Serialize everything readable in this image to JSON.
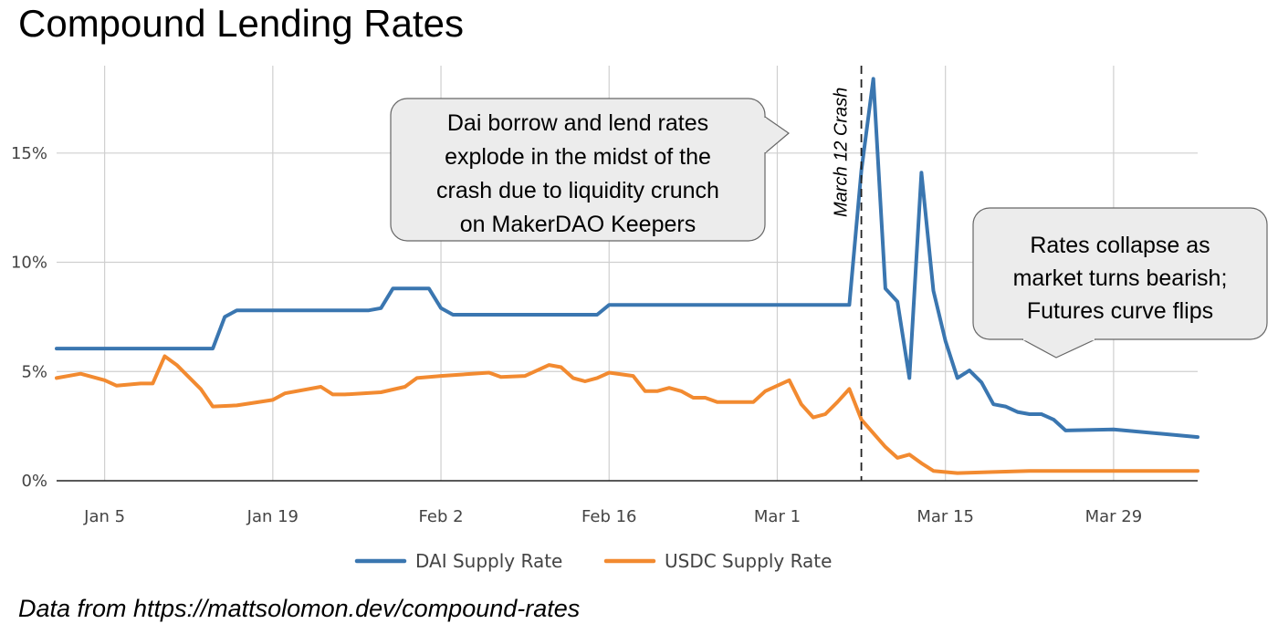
{
  "title": "Compound Lending Rates",
  "caption": "Data from https://mattsolomon.dev/compound-rates",
  "colors": {
    "dai": "#3a76b0",
    "usdc": "#f28a30",
    "grid": "#cfcfcf",
    "axis": "#222222"
  },
  "chart_data": {
    "type": "line",
    "x_type": "date",
    "xlim": [
      "2020-01-01",
      "2020-04-05"
    ],
    "ylim": [
      0,
      19
    ],
    "x_ticks": [
      {
        "date": "2020-01-05",
        "label": "Jan 5"
      },
      {
        "date": "2020-01-19",
        "label": "Jan 19"
      },
      {
        "date": "2020-02-02",
        "label": "Feb 2"
      },
      {
        "date": "2020-02-16",
        "label": "Feb 16"
      },
      {
        "date": "2020-03-01",
        "label": "Mar 1"
      },
      {
        "date": "2020-03-15",
        "label": "Mar 15"
      },
      {
        "date": "2020-03-29",
        "label": "Mar 29"
      }
    ],
    "y_ticks": [
      {
        "value": 0,
        "label": "0%"
      },
      {
        "value": 5,
        "label": "5%"
      },
      {
        "value": 10,
        "label": "10%"
      },
      {
        "value": 15,
        "label": "15%"
      }
    ],
    "grid": true,
    "legend_position": "bottom-center",
    "series": [
      {
        "name": "DAI Supply Rate",
        "color": "#3a76b0",
        "points": [
          [
            "2020-01-01",
            6.05
          ],
          [
            "2020-01-14",
            6.05
          ],
          [
            "2020-01-15",
            7.5
          ],
          [
            "2020-01-16",
            7.8
          ],
          [
            "2020-01-27",
            7.8
          ],
          [
            "2020-01-28",
            7.9
          ],
          [
            "2020-01-29",
            8.8
          ],
          [
            "2020-02-01",
            8.8
          ],
          [
            "2020-02-02",
            7.9
          ],
          [
            "2020-02-03",
            7.6
          ],
          [
            "2020-02-15",
            7.6
          ],
          [
            "2020-02-16",
            8.05
          ],
          [
            "2020-03-07",
            8.05
          ],
          [
            "2020-03-08",
            14.2
          ],
          [
            "2020-03-09",
            18.4
          ],
          [
            "2020-03-10",
            8.8
          ],
          [
            "2020-03-11",
            8.2
          ],
          [
            "2020-03-12",
            4.7
          ],
          [
            "2020-03-13",
            14.1
          ],
          [
            "2020-03-14",
            8.7
          ],
          [
            "2020-03-15",
            6.4
          ],
          [
            "2020-03-16",
            4.7
          ],
          [
            "2020-03-17",
            5.05
          ],
          [
            "2020-03-18",
            4.5
          ],
          [
            "2020-03-19",
            3.5
          ],
          [
            "2020-03-20",
            3.4
          ],
          [
            "2020-03-21",
            3.15
          ],
          [
            "2020-03-22",
            3.05
          ],
          [
            "2020-03-23",
            3.05
          ],
          [
            "2020-03-24",
            2.8
          ],
          [
            "2020-03-25",
            2.3
          ],
          [
            "2020-03-29",
            2.35
          ],
          [
            "2020-04-05",
            2.0
          ]
        ]
      },
      {
        "name": "USDC Supply Rate",
        "color": "#f28a30",
        "points": [
          [
            "2020-01-01",
            4.7
          ],
          [
            "2020-01-03",
            4.9
          ],
          [
            "2020-01-05",
            4.6
          ],
          [
            "2020-01-06",
            4.35
          ],
          [
            "2020-01-08",
            4.45
          ],
          [
            "2020-01-09",
            4.45
          ],
          [
            "2020-01-10",
            5.7
          ],
          [
            "2020-01-11",
            5.3
          ],
          [
            "2020-01-13",
            4.2
          ],
          [
            "2020-01-14",
            3.4
          ],
          [
            "2020-01-16",
            3.45
          ],
          [
            "2020-01-19",
            3.7
          ],
          [
            "2020-01-20",
            4.0
          ],
          [
            "2020-01-23",
            4.3
          ],
          [
            "2020-01-24",
            3.95
          ],
          [
            "2020-01-25",
            3.95
          ],
          [
            "2020-01-28",
            4.05
          ],
          [
            "2020-01-30",
            4.3
          ],
          [
            "2020-01-31",
            4.7
          ],
          [
            "2020-02-02",
            4.8
          ],
          [
            "2020-02-06",
            4.95
          ],
          [
            "2020-02-07",
            4.75
          ],
          [
            "2020-02-09",
            4.8
          ],
          [
            "2020-02-11",
            5.3
          ],
          [
            "2020-02-12",
            5.2
          ],
          [
            "2020-02-13",
            4.7
          ],
          [
            "2020-02-14",
            4.55
          ],
          [
            "2020-02-15",
            4.7
          ],
          [
            "2020-02-16",
            4.95
          ],
          [
            "2020-02-18",
            4.8
          ],
          [
            "2020-02-19",
            4.1
          ],
          [
            "2020-02-20",
            4.1
          ],
          [
            "2020-02-21",
            4.25
          ],
          [
            "2020-02-22",
            4.1
          ],
          [
            "2020-02-23",
            3.8
          ],
          [
            "2020-02-24",
            3.8
          ],
          [
            "2020-02-25",
            3.6
          ],
          [
            "2020-02-28",
            3.6
          ],
          [
            "2020-02-29",
            4.1
          ],
          [
            "2020-03-02",
            4.6
          ],
          [
            "2020-03-03",
            3.5
          ],
          [
            "2020-03-04",
            2.9
          ],
          [
            "2020-03-05",
            3.05
          ],
          [
            "2020-03-06",
            3.6
          ],
          [
            "2020-03-07",
            4.2
          ],
          [
            "2020-03-08",
            2.8
          ],
          [
            "2020-03-10",
            1.55
          ],
          [
            "2020-03-11",
            1.05
          ],
          [
            "2020-03-12",
            1.2
          ],
          [
            "2020-03-13",
            0.8
          ],
          [
            "2020-03-14",
            0.45
          ],
          [
            "2020-03-16",
            0.35
          ],
          [
            "2020-03-19",
            0.4
          ],
          [
            "2020-03-22",
            0.45
          ],
          [
            "2020-04-05",
            0.45
          ]
        ]
      }
    ],
    "annotations": [
      {
        "type": "vline",
        "date": "2020-03-08",
        "label": "March 12 Crash"
      },
      {
        "type": "callout",
        "lines": [
          "Dai borrow and lend rates",
          "explode in the midst of the",
          "crash due to liquidity crunch",
          "on MakerDAO Keepers"
        ]
      },
      {
        "type": "callout",
        "lines": [
          "Rates collapse as",
          "market turns bearish;",
          "Futures curve flips"
        ]
      }
    ]
  }
}
